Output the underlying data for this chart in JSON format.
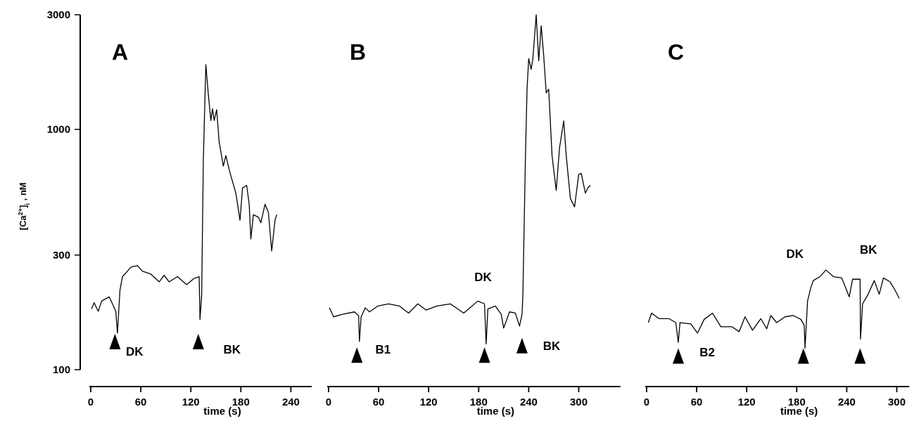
{
  "chart_data": [
    {
      "type": "line",
      "title": "A",
      "xlabel": "time (s)",
      "ylabel": "[Ca$^{2+}$]$_{i}$ , nM",
      "log": "y",
      "xlim": [
        0,
        265
      ],
      "ylim": [
        100,
        3000
      ],
      "xticks": [
        0,
        60,
        120,
        180,
        240
      ],
      "yticks": [
        100,
        300,
        1000,
        3000
      ],
      "series": [
        {
          "color": "#000000",
          "x": [
            1,
            4,
            9,
            13,
            22,
            26,
            30,
            32,
            35,
            38,
            44,
            48,
            56,
            62,
            72,
            82,
            88,
            94,
            104,
            115,
            124,
            130,
            131,
            133,
            135,
            138,
            141,
            144,
            146,
            148,
            151,
            154,
            159,
            162,
            167,
            174,
            179,
            182,
            187,
            190,
            192,
            195,
            201,
            204,
            209,
            213,
            217,
            221,
            223
          ],
          "values": [
            179,
            190,
            175,
            193,
            201,
            188,
            175,
            142,
            214,
            244,
            257,
            267,
            271,
            257,
            250,
            232,
            247,
            232,
            244,
            226,
            240,
            244,
            162,
            204,
            740,
            1860,
            1400,
            1090,
            1220,
            1090,
            1207,
            886,
            703,
            778,
            660,
            543,
            419,
            571,
            585,
            488,
            350,
            442,
            431,
            409,
            488,
            452,
            312,
            419,
            442
          ]
        },
        {
          "type": "scatter",
          "marker": "triangle",
          "color": "#000000",
          "x": [
            29,
            129
          ],
          "values": [
            131,
            131
          ]
        }
      ],
      "annotations": [
        "DK",
        "BK"
      ]
    },
    {
      "type": "line",
      "title": "B",
      "xlabel": "time (s)",
      "log": "y",
      "tick_labels": "x",
      "xlim": [
        0,
        350
      ],
      "ylim": [
        100,
        3000
      ],
      "xticks": [
        0,
        60,
        120,
        180,
        240,
        300
      ],
      "series": [
        {
          "color": "#000000",
          "x": [
            1,
            6,
            17,
            31,
            36,
            37,
            39,
            44,
            49,
            59,
            72,
            85,
            96,
            107,
            117,
            130,
            146,
            162,
            179,
            187,
            189,
            191,
            200,
            207,
            210,
            217,
            224,
            229,
            232,
            233,
            236,
            238,
            240,
            243,
            245,
            249,
            252,
            255,
            258,
            261,
            264,
            268,
            273,
            277,
            282,
            285,
            290,
            295,
            300,
            303,
            308,
            311,
            314
          ],
          "values": [
            181,
            166,
            170,
            174,
            168,
            131,
            166,
            181,
            174,
            184,
            188,
            184,
            172,
            188,
            177,
            184,
            188,
            172,
            193,
            188,
            128,
            179,
            184,
            170,
            149,
            174,
            172,
            152,
            170,
            204,
            740,
            1470,
            1970,
            1780,
            1970,
            3000,
            1930,
            2700,
            2030,
            1420,
            1470,
            778,
            557,
            840,
            1085,
            778,
            516,
            476,
            650,
            656,
            543,
            571,
            585
          ]
        },
        {
          "type": "scatter",
          "marker": "triangle",
          "color": "#000000",
          "x": [
            34,
            187,
            232
          ],
          "values": [
            115,
            115,
            126
          ]
        }
      ],
      "annotations": [
        "B1",
        "DK",
        "BK"
      ]
    },
    {
      "type": "line",
      "title": "C",
      "xlabel": "time (s)",
      "log": "y",
      "tick_labels": "x",
      "xlim": [
        0,
        315
      ],
      "ylim": [
        100,
        3000
      ],
      "xticks": [
        0,
        60,
        120,
        180,
        240,
        300
      ],
      "series": [
        {
          "color": "#000000",
          "x": [
            2,
            6,
            15,
            27,
            35,
            38,
            40,
            53,
            61,
            69,
            79,
            89,
            102,
            111,
            118,
            127,
            137,
            144,
            149,
            156,
            166,
            176,
            185,
            189,
            190,
            193,
            197,
            200,
            208,
            215,
            224,
            234,
            243,
            247,
            256,
            256.5,
            259,
            265,
            273,
            279,
            284,
            292,
            298,
            303
          ],
          "values": [
            157,
            172,
            163,
            163,
            157,
            130,
            157,
            155,
            142,
            162,
            172,
            151,
            151,
            144,
            166,
            146,
            163,
            148,
            168,
            157,
            166,
            168,
            162,
            153,
            123,
            193,
            220,
            235,
            244,
            260,
            244,
            241,
            201,
            238,
            238,
            134,
            188,
            204,
            235,
            206,
            241,
            232,
            214,
            198
          ]
        },
        {
          "type": "scatter",
          "marker": "triangle",
          "color": "#000000",
          "x": [
            38,
            188,
            256
          ],
          "values": [
            114,
            114,
            114
          ]
        }
      ],
      "annotations": [
        "B2",
        "DK",
        "BK"
      ]
    }
  ]
}
